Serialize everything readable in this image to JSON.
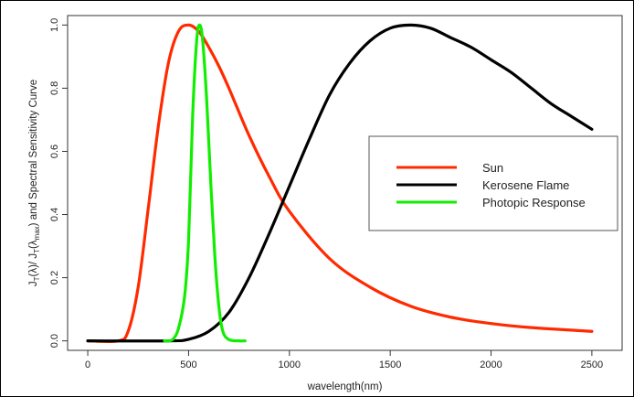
{
  "chart_data": {
    "type": "line",
    "xlabel": "wavelength(nm)",
    "ylabel_parts": {
      "a": "J",
      "a_sub": "T",
      "b": "(λ)/ J",
      "b_sub": "T",
      "c": "(λ",
      "c_sub": "max",
      "d": ") and Spectral Sensitivity Curve"
    },
    "xlim": [
      -100,
      2650
    ],
    "ylim": [
      -0.03,
      1.03
    ],
    "x_ticks": [
      0,
      500,
      1000,
      1500,
      2000,
      2500
    ],
    "x_tick_labels": [
      "0",
      "500",
      "1000",
      "1500",
      "2000",
      "2500"
    ],
    "y_ticks": [
      0.0,
      0.2,
      0.4,
      0.6,
      0.8,
      1.0
    ],
    "y_tick_labels": [
      "0.0",
      "0.2",
      "0.4",
      "0.6",
      "0.8",
      "1.0"
    ],
    "legend_position": "right",
    "series": [
      {
        "name": "Sun",
        "color": "#ff2a00",
        "x": [
          0,
          150,
          200,
          250,
          300,
          350,
          400,
          450,
          500,
          550,
          600,
          650,
          700,
          800,
          900,
          1000,
          1200,
          1400,
          1600,
          1800,
          2000,
          2200,
          2500
        ],
        "y": [
          0.0,
          0.0,
          0.03,
          0.17,
          0.42,
          0.68,
          0.88,
          0.98,
          1.0,
          0.98,
          0.93,
          0.87,
          0.8,
          0.65,
          0.52,
          0.41,
          0.26,
          0.17,
          0.11,
          0.075,
          0.055,
          0.042,
          0.03
        ]
      },
      {
        "name": "Kerosene Flame",
        "color": "#000000",
        "x": [
          0,
          400,
          500,
          600,
          700,
          800,
          900,
          1000,
          1100,
          1200,
          1300,
          1400,
          1500,
          1600,
          1700,
          1800,
          1900,
          2000,
          2100,
          2200,
          2300,
          2400,
          2500
        ],
        "y": [
          0.0,
          0.0,
          0.005,
          0.03,
          0.09,
          0.2,
          0.34,
          0.49,
          0.64,
          0.78,
          0.88,
          0.95,
          0.99,
          1.0,
          0.99,
          0.96,
          0.93,
          0.89,
          0.85,
          0.8,
          0.75,
          0.71,
          0.67
        ]
      },
      {
        "name": "Photopic Response",
        "color": "#11ee00",
        "x": [
          380,
          420,
          450,
          480,
          500,
          520,
          540,
          555,
          570,
          590,
          610,
          630,
          650,
          670,
          700,
          750,
          780
        ],
        "y": [
          0.0,
          0.004,
          0.04,
          0.14,
          0.32,
          0.71,
          0.95,
          1.0,
          0.95,
          0.76,
          0.5,
          0.27,
          0.11,
          0.03,
          0.004,
          0.0,
          0.0
        ]
      }
    ]
  }
}
